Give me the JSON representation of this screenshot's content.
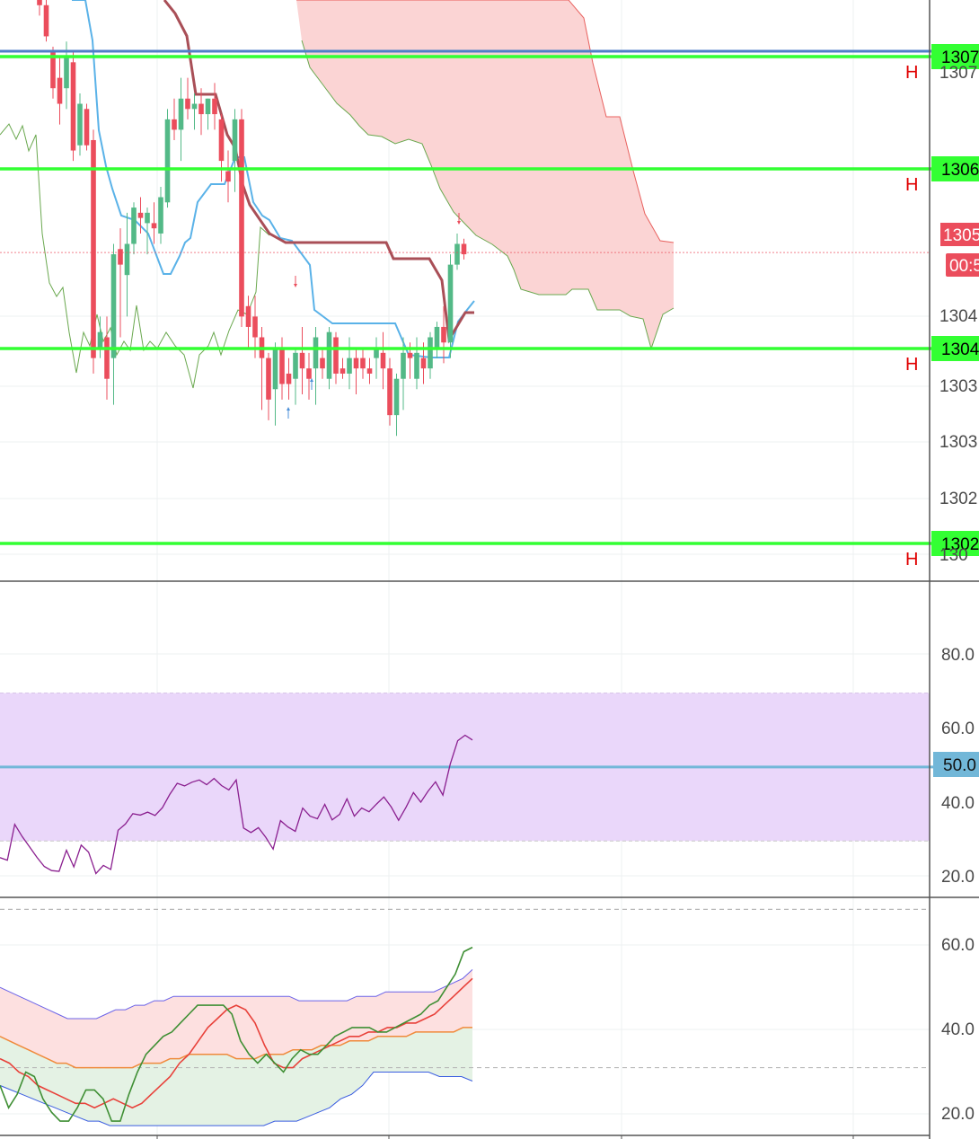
{
  "colors": {
    "up": "#53b987",
    "down": "#eb4d5c",
    "level_line": "#33ff33",
    "level_label_bg": "#33ff33",
    "level_marker": "#e00000",
    "blue_line": "#4f7fc8",
    "kijun": "#a94f57",
    "tenkan": "#5ab2e8",
    "lagging": "#6aa84f",
    "cloud_fill": "#fbd4d4",
    "cloud_edge": "#e8615e",
    "rsi_line": "#8a1f8f",
    "rsi_band": "#ead7fa",
    "rsi_mid": "#72b7d8",
    "grid": "#eef0f2",
    "axis_text": "#4a4a4a"
  },
  "price_panel": {
    "current_price_label": "1305",
    "countdown_label": "00:5",
    "levels": [
      {
        "label": "1307",
        "marker": "H"
      },
      {
        "label": "1306",
        "marker": "H"
      },
      {
        "label": "1304",
        "marker": "H"
      },
      {
        "label": "1302",
        "marker": "H"
      }
    ],
    "extra_line_label": "",
    "ticks": [
      "1307",
      "1304",
      "1303",
      "1303",
      "1302",
      "130"
    ]
  },
  "rsi_panel": {
    "ticks": [
      "80.0",
      "60.0",
      "40.0",
      "20.0"
    ],
    "mid_label": "50.0",
    "band": [
      30,
      70
    ],
    "range": [
      15,
      100
    ]
  },
  "stoch_panel": {
    "ticks": [
      "60.0",
      "40.0",
      "20.0"
    ],
    "range": [
      17,
      70
    ]
  },
  "chart_data": [
    {
      "type": "candlestick",
      "title": "",
      "ylim": [
        1301.85,
        1307.45
      ],
      "levels": [
        1307.0,
        1306.0,
        1304.0,
        1302.0
      ],
      "last_price": 1305.0,
      "candles": [
        [
          1307.55,
          1307.6,
          1307.3,
          1307.4
        ],
        [
          1307.4,
          1307.5,
          1307.05,
          1307.1
        ],
        [
          1306.95,
          1307.0,
          1306.5,
          1306.6
        ],
        [
          1306.7,
          1306.9,
          1306.25,
          1306.45
        ],
        [
          1306.6,
          1307.05,
          1306.4,
          1306.9
        ],
        [
          1306.85,
          1306.95,
          1305.9,
          1306.0
        ],
        [
          1306.05,
          1306.55,
          1305.95,
          1306.45
        ],
        [
          1306.4,
          1306.45,
          1306.0,
          1306.05
        ],
        [
          1306.1,
          1306.2,
          1303.85,
          1304.0
        ],
        [
          1304.1,
          1304.4,
          1304.0,
          1304.25
        ],
        [
          1304.2,
          1304.4,
          1303.6,
          1303.8
        ],
        [
          1304.0,
          1305.1,
          1303.55,
          1305.0
        ],
        [
          1305.05,
          1305.25,
          1304.2,
          1304.9
        ],
        [
          1304.8,
          1305.4,
          1304.4,
          1305.1
        ],
        [
          1305.1,
          1305.5,
          1305.0,
          1305.45
        ],
        [
          1305.4,
          1305.55,
          1305.2,
          1305.35
        ],
        [
          1305.3,
          1305.45,
          1305.0,
          1305.4
        ],
        [
          1305.3,
          1305.5,
          1305.1,
          1305.25
        ],
        [
          1305.2,
          1305.65,
          1305.1,
          1305.55
        ],
        [
          1305.5,
          1306.4,
          1305.45,
          1306.3
        ],
        [
          1306.3,
          1306.5,
          1306.1,
          1306.2
        ],
        [
          1306.2,
          1306.7,
          1305.9,
          1306.5
        ],
        [
          1306.5,
          1306.7,
          1306.3,
          1306.4
        ],
        [
          1306.4,
          1306.55,
          1306.2,
          1306.45
        ],
        [
          1306.45,
          1306.6,
          1306.15,
          1306.35
        ],
        [
          1306.35,
          1306.5,
          1306.2,
          1306.5
        ],
        [
          1306.5,
          1306.65,
          1306.2,
          1306.35
        ],
        [
          1306.3,
          1306.35,
          1305.7,
          1305.9
        ],
        [
          1305.8,
          1306.0,
          1305.5,
          1305.7
        ],
        [
          1305.9,
          1306.4,
          1305.6,
          1306.3
        ],
        [
          1306.3,
          1306.4,
          1304.3,
          1304.4
        ],
        [
          1304.5,
          1304.6,
          1304.1,
          1304.3
        ],
        [
          1304.4,
          1304.6,
          1304.0,
          1304.2
        ],
        [
          1304.2,
          1304.3,
          1303.5,
          1304.0
        ],
        [
          1304.0,
          1304.05,
          1303.4,
          1303.6
        ],
        [
          1303.7,
          1304.15,
          1303.35,
          1304.1
        ],
        [
          1304.1,
          1304.2,
          1303.6,
          1303.75
        ],
        [
          1303.85,
          1304.0,
          1303.6,
          1303.75
        ],
        [
          1303.8,
          1304.1,
          1303.55,
          1304.05
        ],
        [
          1304.05,
          1304.3,
          1303.65,
          1303.9
        ],
        [
          1303.9,
          1304.05,
          1303.6,
          1303.8
        ],
        [
          1303.9,
          1304.3,
          1303.55,
          1304.2
        ],
        [
          1304.0,
          1304.1,
          1303.8,
          1303.9
        ],
        [
          1303.8,
          1304.3,
          1303.7,
          1304.25
        ],
        [
          1304.2,
          1304.25,
          1303.75,
          1303.85
        ],
        [
          1303.9,
          1304.0,
          1303.8,
          1303.85
        ],
        [
          1303.85,
          1304.2,
          1303.7,
          1304.0
        ],
        [
          1304.0,
          1304.1,
          1303.65,
          1303.9
        ],
        [
          1304.0,
          1304.1,
          1303.8,
          1303.9
        ],
        [
          1303.9,
          1304.0,
          1303.75,
          1303.85
        ],
        [
          1304.0,
          1304.2,
          1303.8,
          1304.1
        ],
        [
          1304.05,
          1304.25,
          1303.7,
          1303.9
        ],
        [
          1303.9,
          1304.0,
          1303.35,
          1303.45
        ],
        [
          1303.45,
          1303.85,
          1303.25,
          1303.8
        ],
        [
          1303.8,
          1304.2,
          1303.5,
          1304.05
        ],
        [
          1304.05,
          1304.15,
          1303.8,
          1304.0
        ],
        [
          1303.8,
          1304.2,
          1303.7,
          1304.05
        ],
        [
          1304.0,
          1304.15,
          1303.75,
          1303.9
        ],
        [
          1303.9,
          1304.25,
          1303.8,
          1304.2
        ],
        [
          1304.1,
          1304.35,
          1304.0,
          1304.3
        ],
        [
          1304.3,
          1304.5,
          1303.95,
          1304.15
        ],
        [
          1304.15,
          1305.0,
          1304.0,
          1304.9
        ],
        [
          1304.9,
          1305.2,
          1304.85,
          1305.1
        ],
        [
          1305.1,
          1305.15,
          1304.95,
          1305.0
        ]
      ]
    },
    {
      "type": "line",
      "title": "",
      "ylim": [
        15,
        100
      ],
      "band": [
        30,
        70
      ],
      "midline": 50,
      "series": [
        {
          "values": [
            25.5,
            24.8,
            34.5,
            31.2,
            28.4,
            25.6,
            23.1,
            22.0,
            21.8,
            27.5,
            23.0,
            28.9,
            27.0,
            21.2,
            23.4,
            22.3,
            32.9,
            34.6,
            37.4,
            37.0,
            37.8,
            36.9,
            39.0,
            42.6,
            45.6,
            44.9,
            45.9,
            46.5,
            45.2,
            46.9,
            45.0,
            43.8,
            46.5,
            33.5,
            32.3,
            33.6,
            31.0,
            27.8,
            35.5,
            33.8,
            32.6,
            38.9,
            36.7,
            36.0,
            39.9,
            35.7,
            37.2,
            41.4,
            36.7,
            38.9,
            37.9,
            40.0,
            41.9,
            39.2,
            35.6,
            39.1,
            43.1,
            40.5,
            43.5,
            46.0,
            42.4,
            50.8,
            57.1,
            58.6,
            57.3
          ]
        }
      ]
    },
    {
      "type": "line",
      "title": "",
      "ylim": [
        17,
        70
      ],
      "dashed_levels": [
        67.5,
        32.0
      ],
      "series": [
        {
          "values": [
            28,
            23,
            26,
            31,
            30,
            25,
            22,
            20,
            20,
            23,
            27,
            27,
            25,
            20,
            20,
            26,
            31,
            35,
            37,
            39,
            40,
            42,
            44,
            46,
            46,
            46,
            46,
            44,
            38,
            35,
            33,
            35,
            33,
            31,
            34,
            36,
            35,
            35,
            37,
            39,
            40,
            41,
            41,
            41,
            40,
            40,
            41,
            42,
            43,
            44,
            46,
            47,
            50,
            53,
            58,
            59
          ]
        },
        {
          "values": [
            34,
            33,
            31,
            30,
            28,
            27,
            26,
            25,
            24,
            24,
            23,
            24,
            25,
            24,
            23,
            24,
            26,
            28,
            30,
            33,
            35,
            38,
            41,
            43,
            45,
            46,
            45,
            42,
            37,
            33,
            32,
            32,
            34,
            35,
            36,
            37,
            38,
            39,
            39,
            40,
            40,
            41,
            41,
            42,
            42,
            43,
            44,
            46,
            48,
            50,
            52
          ]
        },
        {
          "values": [
            39,
            38,
            37,
            36,
            35,
            34,
            33,
            33,
            32,
            32,
            32,
            32,
            32,
            32,
            32,
            33,
            33,
            33,
            34,
            34,
            35,
            35,
            35,
            35,
            35,
            34,
            34,
            34,
            35,
            35,
            35,
            36,
            36,
            36,
            37,
            37,
            37,
            38,
            38,
            38,
            39,
            39,
            39,
            39,
            40,
            40,
            40,
            40,
            40,
            41,
            41
          ]
        },
        {
          "values": [
            50,
            49,
            48,
            47,
            46,
            45,
            44,
            43,
            43,
            43,
            43,
            44,
            45,
            45,
            46,
            46,
            47,
            47,
            48,
            48,
            48,
            48,
            48,
            48,
            48,
            48,
            48,
            48,
            48,
            48,
            48,
            47,
            47,
            47,
            47,
            47,
            47,
            48,
            48,
            48,
            49,
            49,
            49,
            49,
            49,
            49,
            50,
            51,
            52,
            54
          ]
        },
        {
          "values": [
            28,
            27,
            26,
            25,
            24,
            23,
            22,
            21,
            20,
            20,
            19,
            19,
            19,
            19,
            19,
            19,
            19,
            19,
            19,
            19,
            19,
            19,
            19,
            19,
            19,
            20,
            20,
            20,
            21,
            22,
            23,
            25,
            26,
            28,
            31,
            31,
            31,
            31,
            31,
            31,
            30,
            30,
            30,
            29
          ]
        }
      ]
    }
  ]
}
